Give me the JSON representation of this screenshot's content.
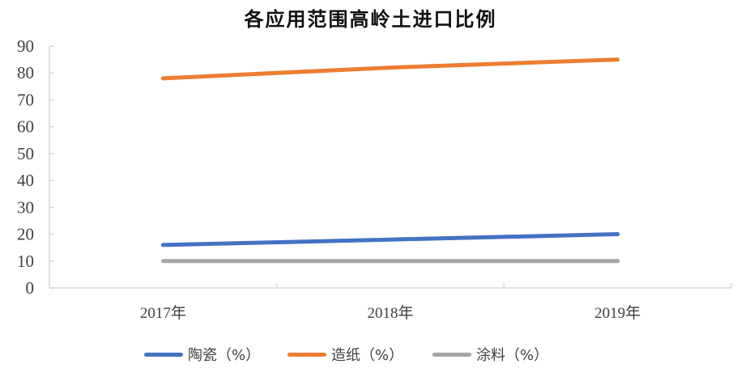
{
  "chart_data": {
    "type": "line",
    "title": "各应用范围高岭土进口比例",
    "xlabel": "",
    "ylabel": "",
    "categories": [
      "2017年",
      "2018年",
      "2019年"
    ],
    "series": [
      {
        "name": "陶瓷（%）",
        "color": "#4472C4",
        "values": [
          16,
          18,
          20
        ]
      },
      {
        "name": "造纸（%）",
        "color": "#ED7D31",
        "values": [
          78,
          82,
          85
        ]
      },
      {
        "name": "涂料（%）",
        "color": "#A5A5A5",
        "values": [
          10,
          10,
          10
        ]
      }
    ],
    "ylim": [
      0,
      90
    ],
    "yticks": [
      0,
      10,
      20,
      30,
      40,
      50,
      60,
      70,
      80,
      90
    ],
    "grid": false,
    "legend_position": "bottom"
  },
  "header": {
    "title": "各应用范围高岭土进口比例"
  },
  "legend": {
    "items": [
      {
        "label": "陶瓷（%）",
        "color": "#4472C4"
      },
      {
        "label": "造纸（%）",
        "color": "#ED7D31"
      },
      {
        "label": "涂料（%）",
        "color": "#A5A5A5"
      }
    ]
  }
}
